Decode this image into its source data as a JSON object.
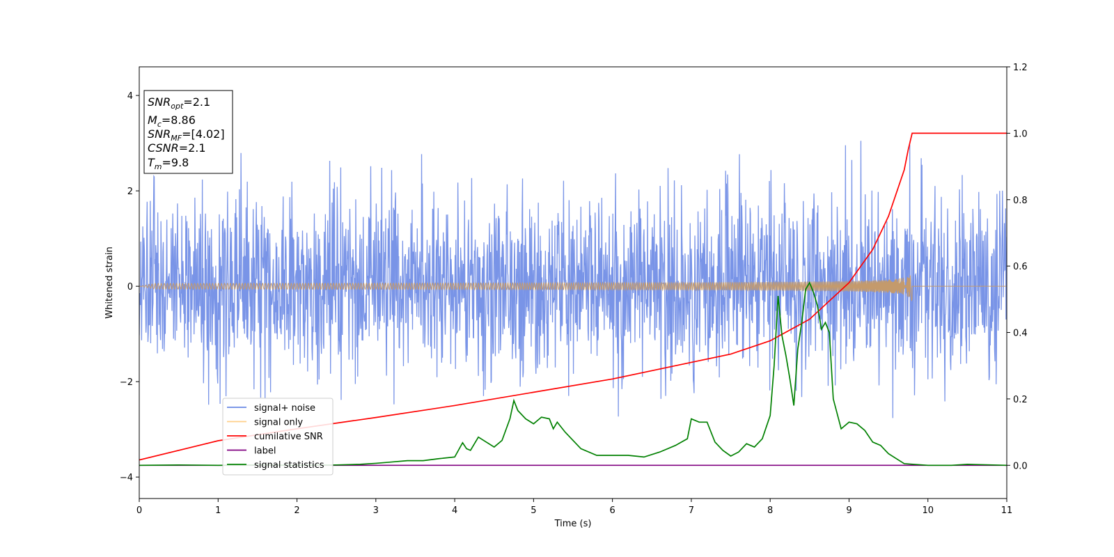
{
  "chart_data": {
    "type": "line",
    "xlabel": "Time (s)",
    "ylabel": "Whitened strain",
    "xlim": [
      0,
      11
    ],
    "ylim": [
      -4.45,
      4.6
    ],
    "y2lim": [
      -0.1,
      1.2
    ],
    "x_ticks": [
      "0",
      "1",
      "2",
      "3",
      "4",
      "5",
      "6",
      "7",
      "8",
      "9",
      "10",
      "11"
    ],
    "y_ticks": [
      "−4",
      "−2",
      "0",
      "2",
      "4"
    ],
    "y2_ticks": [
      "0.0",
      "0.2",
      "0.4",
      "0.6",
      "0.8",
      "1.0",
      "1.2"
    ],
    "legend_position": "lower-left",
    "info_box": {
      "snr_opt_name": "SNR",
      "snr_opt_sub": "opt",
      "snr_opt_value": "=2.1",
      "mc_name": "M",
      "mc_sub": "c",
      "mc_value": "=8.86",
      "snr_mf_name": "SNR",
      "snr_mf_sub": "MF",
      "snr_mf_value": "=[4.02]",
      "csnr_name": "CSNR",
      "csnr_value": "=2.1",
      "tm_name": "T",
      "tm_sub": "m",
      "tm_value": "=9.8"
    },
    "series": [
      {
        "name": "signal+ noise",
        "color": "#6a88e4",
        "axis": "left",
        "noise": {
          "sigma": 0.95,
          "range": [
            -4.1,
            4.2
          ],
          "samples": 2200,
          "x_range": [
            0,
            11
          ]
        }
      },
      {
        "name": "signal only",
        "color": "#c49a6c",
        "legend_color": "#ffcf87",
        "axis": "left",
        "chirp": {
          "x_end": 9.8,
          "amp_end": 0.3
        }
      },
      {
        "name": "cumilative SNR",
        "color": "#ff0000",
        "axis": "right",
        "x": [
          0,
          1,
          2,
          3,
          4,
          5,
          6,
          7,
          7.5,
          8,
          8.5,
          9,
          9.3,
          9.5,
          9.7,
          9.75,
          9.8,
          11
        ],
        "y": [
          0.016,
          0.074,
          0.11,
          0.144,
          0.18,
          0.22,
          0.26,
          0.31,
          0.335,
          0.375,
          0.44,
          0.55,
          0.65,
          0.75,
          0.89,
          0.95,
          1.0,
          1.0
        ]
      },
      {
        "name": "label",
        "color": "#800080",
        "axis": "right",
        "x": [
          0,
          11
        ],
        "y": [
          0,
          0
        ]
      },
      {
        "name": "signal statistics",
        "color": "#008000",
        "axis": "right",
        "x": [
          0,
          0.5,
          1,
          1.5,
          2,
          2.5,
          2.8,
          3,
          3.2,
          3.4,
          3.6,
          3.8,
          4,
          4.1,
          4.15,
          4.2,
          4.3,
          4.4,
          4.5,
          4.6,
          4.7,
          4.75,
          4.8,
          4.9,
          5,
          5.1,
          5.2,
          5.25,
          5.3,
          5.4,
          5.6,
          5.8,
          6,
          6.2,
          6.4,
          6.6,
          6.8,
          6.95,
          7,
          7.1,
          7.2,
          7.3,
          7.4,
          7.5,
          7.6,
          7.7,
          7.8,
          7.9,
          8.0,
          8.05,
          8.1,
          8.15,
          8.2,
          8.25,
          8.3,
          8.35,
          8.4,
          8.45,
          8.5,
          8.55,
          8.6,
          8.65,
          8.7,
          8.75,
          8.8,
          8.9,
          9.0,
          9.1,
          9.2,
          9.3,
          9.4,
          9.5,
          9.7,
          10,
          10.3,
          10.5,
          11
        ],
        "y": [
          0.0,
          0.001,
          0.0,
          0.001,
          0.0,
          0.001,
          0.003,
          0.006,
          0.01,
          0.014,
          0.014,
          0.02,
          0.025,
          0.068,
          0.05,
          0.045,
          0.085,
          0.07,
          0.055,
          0.075,
          0.14,
          0.195,
          0.165,
          0.14,
          0.125,
          0.145,
          0.14,
          0.11,
          0.13,
          0.1,
          0.05,
          0.03,
          0.03,
          0.03,
          0.025,
          0.04,
          0.06,
          0.08,
          0.14,
          0.13,
          0.13,
          0.07,
          0.045,
          0.028,
          0.04,
          0.065,
          0.055,
          0.08,
          0.15,
          0.3,
          0.51,
          0.39,
          0.33,
          0.26,
          0.18,
          0.35,
          0.43,
          0.53,
          0.55,
          0.52,
          0.48,
          0.41,
          0.43,
          0.4,
          0.2,
          0.11,
          0.13,
          0.125,
          0.105,
          0.07,
          0.06,
          0.035,
          0.005,
          0.0,
          0.0,
          0.003,
          0.0
        ]
      }
    ]
  }
}
